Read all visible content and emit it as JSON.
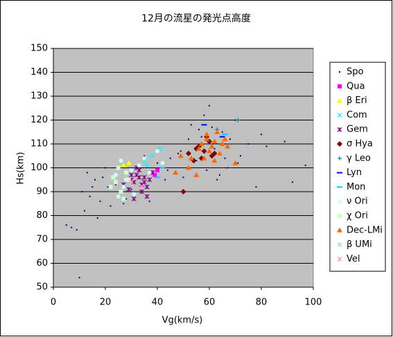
{
  "chart_data": {
    "type": "scatter",
    "title": "12月の流星の発光点高度",
    "x_label": "Vg(km/s)",
    "y_label": "Hs(km)",
    "xlim": [
      0,
      100
    ],
    "xticks": [
      0,
      20,
      40,
      60,
      80,
      100
    ],
    "ylim": [
      50,
      150
    ],
    "yticks": [
      50,
      60,
      70,
      80,
      90,
      100,
      110,
      120,
      130,
      140,
      150
    ],
    "grid": true,
    "legend": "right",
    "series": [
      {
        "name": "Spo",
        "color": "#000080",
        "marker": "dot",
        "x": [
          10,
          5,
          7,
          12,
          14,
          11,
          16,
          18,
          13,
          20,
          22,
          15,
          19,
          24,
          28,
          33,
          40,
          37,
          45,
          48,
          50,
          52,
          55,
          47,
          58,
          60,
          62,
          65,
          67,
          63,
          70,
          72,
          75,
          78,
          80,
          82,
          89,
          92,
          97,
          57,
          53,
          61,
          66,
          43,
          25,
          30,
          35,
          17,
          9,
          68,
          71,
          59,
          64,
          56,
          49,
          44,
          27,
          21
        ],
        "y": [
          54,
          76,
          75,
          82,
          88,
          90,
          95,
          86,
          98,
          100,
          84,
          92,
          96,
          93,
          87,
          99,
          102,
          86,
          104,
          106,
          96,
          112,
          103,
          98,
          122,
          126,
          108,
          115,
          100,
          95,
          120,
          105,
          110,
          92,
          114,
          109,
          111,
          94,
          101,
          113,
          118,
          117,
          104,
          95,
          88,
          91,
          105,
          79,
          74,
          112,
          102,
          99,
          97,
          116,
          107,
          99,
          85,
          92
        ]
      },
      {
        "name": "Qua",
        "color": "#ff00ff",
        "marker": "square",
        "x": [
          38,
          39,
          40
        ],
        "y": [
          98,
          97,
          99
        ]
      },
      {
        "name": "β Eri",
        "color": "#ffff00",
        "marker": "triangle",
        "x": [
          27,
          29
        ],
        "y": [
          101,
          102
        ]
      },
      {
        "name": "Com",
        "color": "#00ffff",
        "marker": "x",
        "x": [
          35,
          38,
          41,
          36
        ],
        "y": [
          103,
          105,
          108,
          101
        ]
      },
      {
        "name": "Gem",
        "color": "#800080",
        "marker": "star",
        "x": [
          30,
          32,
          34,
          35,
          36,
          33,
          31,
          29,
          37,
          38,
          34,
          32,
          35,
          27,
          30,
          33,
          36,
          31
        ],
        "y": [
          95,
          97,
          93,
          96,
          92,
          99,
          94,
          91,
          95,
          98,
          90,
          100,
          94,
          93,
          97,
          96,
          88,
          87
        ]
      },
      {
        "name": "σ Hya",
        "color": "#800000",
        "marker": "diamond",
        "x": [
          55,
          57,
          58,
          60,
          54,
          62,
          52,
          56,
          59,
          61,
          50
        ],
        "y": [
          108,
          104,
          107,
          111,
          103,
          106,
          106,
          109,
          113,
          105,
          90
        ]
      },
      {
        "name": "γ Leo",
        "color": "#008080",
        "marker": "plus",
        "x": [
          63,
          71
        ],
        "y": [
          116,
          120
        ]
      },
      {
        "name": "Lyn",
        "color": "#0000ff",
        "marker": "dash",
        "x": [
          58,
          65
        ],
        "y": [
          118,
          113
        ]
      },
      {
        "name": "Mon",
        "color": "#00ccff",
        "marker": "dash",
        "x": [
          40,
          42,
          66
        ],
        "y": [
          96,
          100,
          114
        ]
      },
      {
        "name": "ν Ori",
        "color": "#ccffff",
        "marker": "circle",
        "x": [
          24,
          26,
          28,
          30,
          31,
          33,
          35,
          37,
          40,
          42,
          25,
          27
        ],
        "y": [
          97,
          103,
          95,
          99,
          89,
          101,
          104,
          98,
          107,
          102,
          88,
          92
        ]
      },
      {
        "name": "χ Ori",
        "color": "#ccffcc",
        "marker": "square",
        "x": [
          22,
          24,
          26,
          28,
          25,
          27,
          29,
          23
        ],
        "y": [
          92,
          94,
          90,
          98,
          100,
          87,
          95,
          96
        ]
      },
      {
        "name": "Dec-LMi",
        "color": "#ff6600",
        "marker": "triangle",
        "x": [
          47,
          52,
          55,
          58,
          60,
          62,
          57,
          59,
          61,
          64,
          66,
          63,
          67,
          56,
          53,
          70,
          49,
          65,
          59,
          62
        ],
        "y": [
          98,
          100,
          97,
          104,
          107,
          103,
          110,
          112,
          109,
          106,
          112,
          115,
          109,
          108,
          104,
          102,
          105,
          110,
          114,
          111
        ]
      },
      {
        "name": "β UMi",
        "color": "#99ccff",
        "marker": "x",
        "x": [
          36,
          43
        ],
        "y": [
          104,
          108
        ]
      },
      {
        "name": "Vel",
        "color": "#ff99cc",
        "marker": "star",
        "x": [
          30,
          34
        ],
        "y": [
          94,
          92
        ]
      }
    ]
  }
}
